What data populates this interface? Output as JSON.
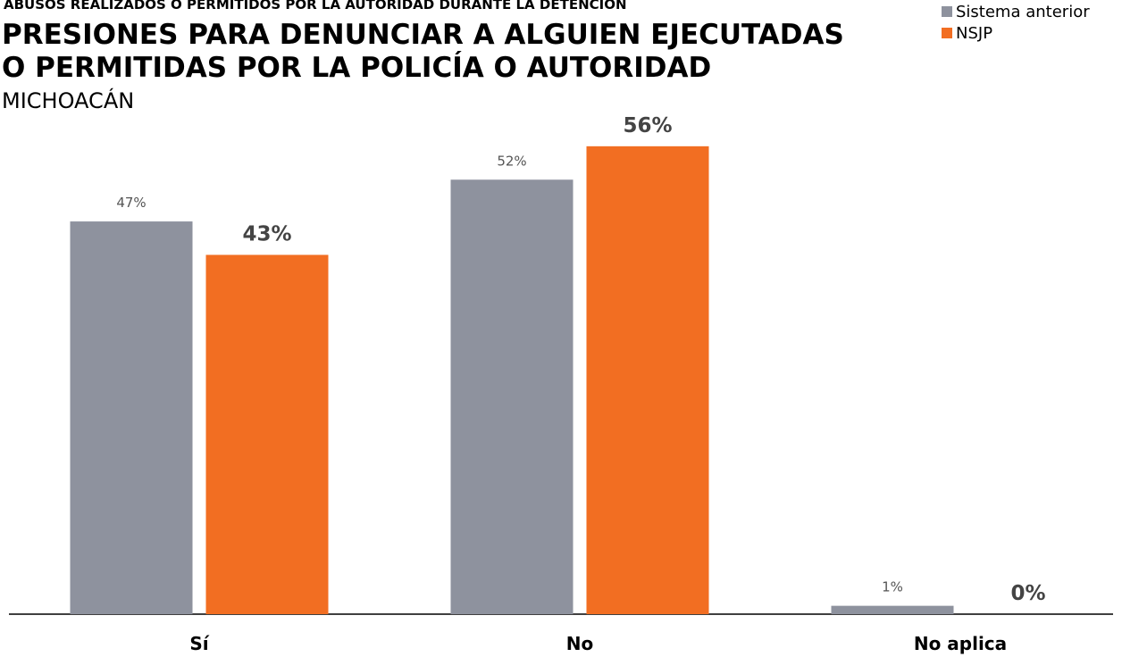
{
  "chart_data": {
    "type": "bar",
    "supertitle": "ABUSOS REALIZADOS O PERMITIDOS POR LA AUTORIDAD DURANTE LA DETENCIÓN",
    "title": [
      "PRESIONES PARA DENUNCIAR A ALGUIEN EJECUTADAS",
      "O PERMITIDAS POR LA POLICÍA O AUTORIDAD"
    ],
    "subtitle": "MICHOACÁN",
    "categories": [
      "Sí",
      "No",
      "No aplica"
    ],
    "series": [
      {
        "name": "Sistema anterior",
        "color": "#8e929e",
        "values": [
          47,
          52,
          1
        ],
        "value_labels": [
          "47%",
          "52%",
          "1%"
        ]
      },
      {
        "name": "NSJP",
        "color": "#f26e22",
        "values": [
          43,
          56,
          0
        ],
        "value_labels": [
          "43%",
          "56%",
          "0%"
        ]
      }
    ],
    "legend": "top-right"
  }
}
